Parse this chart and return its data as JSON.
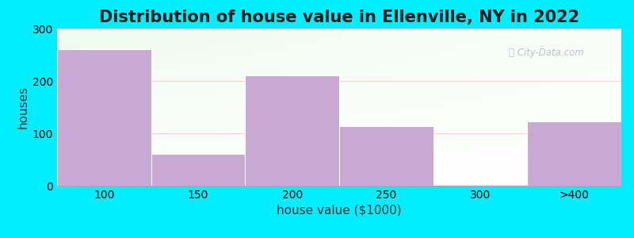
{
  "title": "Distribution of house value in Ellenville, NY in 2022",
  "xlabel": "house value ($1000)",
  "ylabel": "houses",
  "categories": [
    "100",
    "150",
    "200",
    "250",
    "300",
    ">400"
  ],
  "values": [
    260,
    60,
    210,
    113,
    0,
    122
  ],
  "bar_color": "#C9A8D4",
  "bar_edgecolor": "#ffffff",
  "ylim": [
    0,
    300
  ],
  "yticks": [
    0,
    100,
    200,
    300
  ],
  "background_outer": "#00EEFF",
  "title_fontsize": 15,
  "axis_label_fontsize": 11,
  "tick_fontsize": 10,
  "bar_width": 1.0,
  "watermark": "City-Data.com"
}
